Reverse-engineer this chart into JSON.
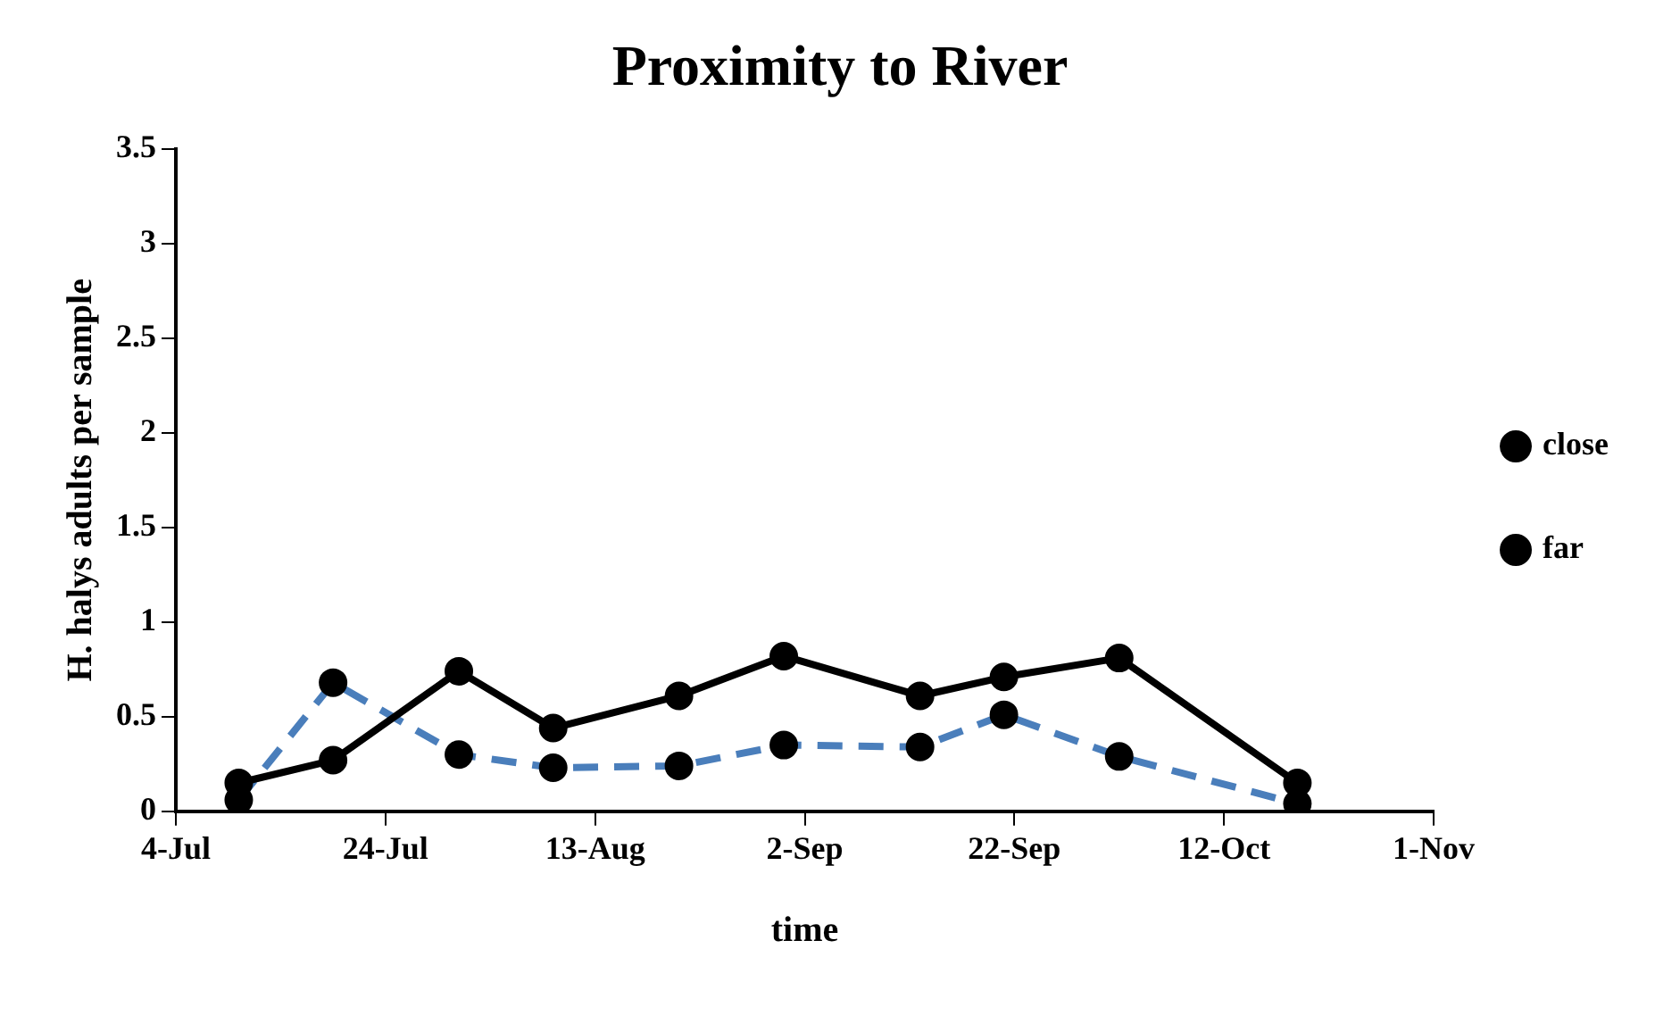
{
  "chart_data": {
    "type": "line",
    "title": "Proximity to River",
    "xlabel": "time",
    "ylabel": "H. halys adults per sample",
    "x": [
      "--07-10",
      "--07-19",
      "--07-31",
      "--08-09",
      "--08-21",
      "--08-31",
      "--09-13",
      "--09-21",
      "--10-02",
      "--10-19"
    ],
    "series": [
      {
        "name": "close",
        "color": "#000000",
        "line_style": "solid",
        "values": [
          0.15,
          0.27,
          0.74,
          0.44,
          0.61,
          0.82,
          0.61,
          0.71,
          0.81,
          0.15
        ]
      },
      {
        "name": "far",
        "color": "#4a7ebb",
        "line_style": "dashed",
        "values": [
          0.06,
          0.68,
          0.3,
          0.23,
          0.24,
          0.35,
          0.34,
          0.51,
          0.29,
          0.04
        ]
      }
    ],
    "xlim": [
      "--07-04",
      "--11-01"
    ],
    "xticks": [
      {
        "value": "--07-04",
        "label": "4-Jul"
      },
      {
        "value": "--07-24",
        "label": "24-Jul"
      },
      {
        "value": "--08-13",
        "label": "13-Aug"
      },
      {
        "value": "--09-02",
        "label": "2-Sep"
      },
      {
        "value": "--09-22",
        "label": "22-Sep"
      },
      {
        "value": "--10-12",
        "label": "12-Oct"
      },
      {
        "value": "--11-01",
        "label": "1-Nov"
      }
    ],
    "ylim": [
      0,
      3.5
    ],
    "yticks": [
      0,
      0.5,
      1,
      1.5,
      2,
      2.5,
      3,
      3.5
    ],
    "grid": false,
    "legend": "right",
    "marker": "circle"
  }
}
